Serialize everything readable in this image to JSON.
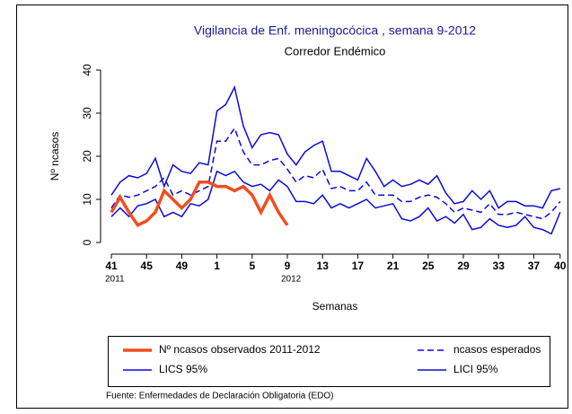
{
  "chart_data": {
    "type": "line",
    "title": "Vigilancia de Enf. meningocócica , semana 9-2012",
    "subtitle": "Corredor Endémico",
    "y_label": "Nº ncasos",
    "x_label": "Semanas",
    "source": "Fuente: Enfermedades de Declaración Obligatoria (EDO)",
    "categories": [
      "41",
      null,
      null,
      null,
      "45",
      null,
      null,
      null,
      "49",
      null,
      null,
      null,
      "1",
      null,
      null,
      null,
      "5",
      null,
      null,
      null,
      "9",
      null,
      null,
      null,
      "13",
      null,
      null,
      null,
      "17",
      null,
      null,
      null,
      "21",
      null,
      null,
      null,
      "25",
      null,
      null,
      null,
      "29",
      null,
      null,
      null,
      "33",
      null,
      null,
      null,
      "37",
      null,
      null,
      "40"
    ],
    "year_labels": [
      "2011",
      null,
      null,
      null,
      null,
      null,
      null,
      null,
      null,
      null,
      null,
      null,
      null,
      null,
      null,
      null,
      null,
      null,
      null,
      null,
      "2012",
      null,
      null,
      null,
      null,
      null,
      null,
      null,
      null,
      null,
      null,
      null,
      null,
      null,
      null,
      null,
      null,
      null,
      null,
      null,
      null,
      null,
      null,
      null,
      null,
      null,
      null,
      null,
      null,
      null,
      null,
      null
    ],
    "ylim": [
      -2,
      42
    ],
    "yticks": [
      0,
      10,
      20,
      30,
      40
    ],
    "series": [
      {
        "name": "Nº ncasos observados 2011-2012",
        "color": "#f04e1e",
        "width": 3.5,
        "dashed": false,
        "values": [
          7,
          10.5,
          7,
          4,
          5,
          7,
          12,
          10,
          8,
          10,
          14,
          14,
          13,
          13,
          12,
          13,
          11,
          7,
          11,
          7,
          4,
          null,
          null,
          null,
          null,
          null,
          null,
          null,
          null,
          null,
          null,
          null,
          null,
          null,
          null,
          null,
          null,
          null,
          null,
          null,
          null,
          null,
          null,
          null,
          null,
          null,
          null,
          null,
          null,
          null,
          null,
          null
        ]
      },
      {
        "name": "ncasos esperados",
        "color": "#0a0adc",
        "width": 1.5,
        "dashed": true,
        "values": [
          8,
          11,
          10.5,
          11,
          12,
          13,
          15,
          11,
          12,
          11,
          12,
          13,
          23.5,
          23.5,
          26.5,
          21,
          18,
          18,
          19,
          19.5,
          17,
          14,
          15.5,
          15,
          17,
          12.5,
          13,
          12,
          12,
          14,
          11,
          11,
          11,
          9.5,
          9.5,
          10.5,
          11,
          10.5,
          9,
          7,
          8,
          7.5,
          7,
          9,
          6.5,
          6.5,
          7,
          6.5,
          6,
          5.5,
          7,
          9.5
        ]
      },
      {
        "name": "LICS 95%",
        "color": "#0a0adc",
        "width": 1.5,
        "dashed": false,
        "values": [
          11,
          14,
          15.5,
          15,
          16,
          19.5,
          13,
          18,
          16.5,
          16,
          18.5,
          18,
          30.5,
          32,
          36,
          27,
          22,
          25,
          25.5,
          25,
          20.5,
          18,
          21,
          22.5,
          23.5,
          16.5,
          16.5,
          15.5,
          14.5,
          19.5,
          16.5,
          13,
          14.5,
          13,
          13.5,
          14.5,
          13.5,
          15.5,
          11.5,
          9,
          9.5,
          12,
          10,
          12,
          8,
          9.5,
          9.5,
          8.5,
          8.5,
          8,
          12,
          12.5
        ]
      },
      {
        "name": "LICI 95%",
        "color": "#0a0adc",
        "width": 1.5,
        "dashed": false,
        "values": [
          6,
          8,
          6,
          8.5,
          9,
          10,
          6,
          7,
          6,
          9,
          8.5,
          10,
          16.5,
          15.5,
          16.5,
          14,
          13,
          13.5,
          12,
          14.5,
          13,
          9.5,
          9.5,
          9,
          11,
          8,
          9,
          8,
          9,
          10,
          8,
          8.5,
          9,
          5.5,
          5,
          6,
          8,
          5,
          6,
          4.5,
          6.5,
          3,
          3.5,
          5.5,
          4,
          3.5,
          4,
          6,
          3.5,
          3,
          2,
          7
        ]
      }
    ]
  }
}
